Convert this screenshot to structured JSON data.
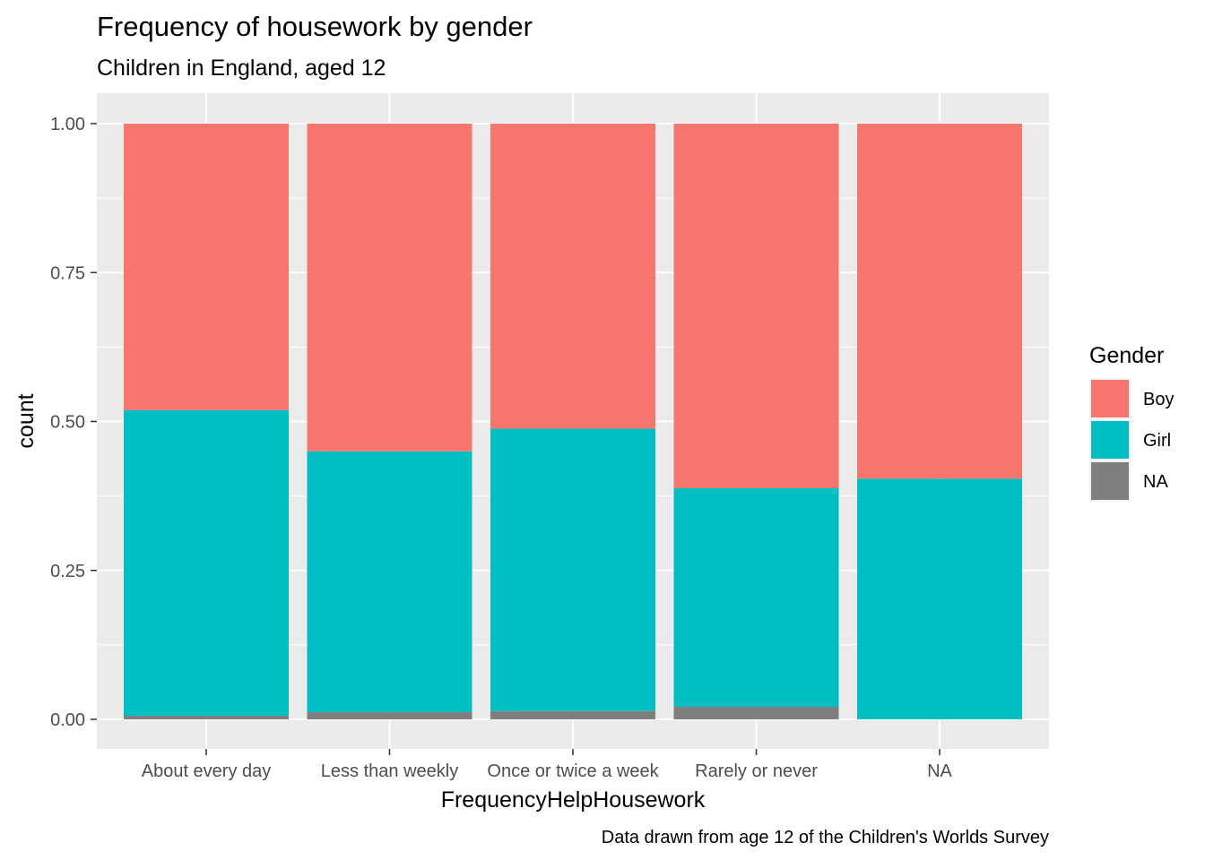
{
  "chart_data": {
    "type": "bar",
    "stacked": "fill",
    "title": "Frequency of housework by gender",
    "subtitle": "Children in England, aged 12",
    "caption": "Data drawn from age 12 of the Children's Worlds Survey",
    "xlabel": "FrequencyHelpHousework",
    "ylabel": "count",
    "ylim": [
      0,
      1
    ],
    "yticks": [
      0,
      0.25,
      0.5,
      0.75,
      1
    ],
    "ytick_labels": [
      "0.00",
      "0.25",
      "0.50",
      "0.75",
      "1.00"
    ],
    "categories": [
      "About every day",
      "Less than weekly",
      "Once or twice a week",
      "Rarely or never",
      "NA"
    ],
    "legend_title": "Gender",
    "legend_position": "right",
    "grid": true,
    "series": [
      {
        "name": "NA",
        "color": "#7f7f7f",
        "values": [
          0.006,
          0.012,
          0.014,
          0.021,
          0.0
        ]
      },
      {
        "name": "Girl",
        "color": "#00bfc4",
        "values": [
          0.513,
          0.438,
          0.474,
          0.367,
          0.404
        ]
      },
      {
        "name": "Boy",
        "color": "#f8766d",
        "values": [
          0.481,
          0.55,
          0.512,
          0.612,
          0.596
        ]
      }
    ],
    "legend_order": [
      "Boy",
      "Girl",
      "NA"
    ]
  }
}
